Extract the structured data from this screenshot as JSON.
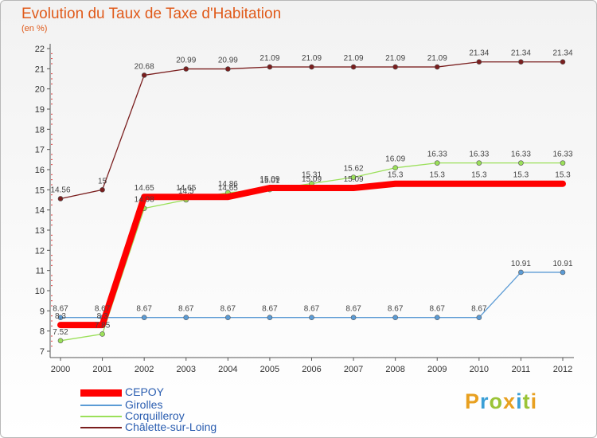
{
  "header": {
    "title": "Evolution du Taux de Taxe d'Habitation",
    "unit": "(en %)"
  },
  "logo": {
    "text": "Proxiti"
  },
  "colors": {
    "cepoy": "#ff0000",
    "girolles": "#5b9bd5",
    "corquilleroy": "#9be05a",
    "chalette": "#7a1e1e",
    "title": "#e05a1a",
    "legend_text": "#2a5db0"
  },
  "chart_data": {
    "type": "line",
    "title": "Evolution du Taux de Taxe d'Habitation",
    "subtitle": "(en %)",
    "xlabel": "",
    "ylabel": "",
    "x": [
      2000,
      2001,
      2002,
      2003,
      2004,
      2005,
      2006,
      2007,
      2008,
      2009,
      2010,
      2011,
      2012
    ],
    "ylim": [
      7,
      22
    ],
    "yticks": [
      7,
      8,
      9,
      10,
      11,
      12,
      13,
      14,
      15,
      16,
      17,
      18,
      19,
      20,
      21,
      22
    ],
    "grid": false,
    "legend_position": "bottom-left",
    "series": [
      {
        "name": "CEPOY",
        "color": "#ff0000",
        "values": [
          8.3,
          8.3,
          14.65,
          14.65,
          14.65,
          15.09,
          15.09,
          15.09,
          15.3,
          15.3,
          15.3,
          15.3,
          15.3
        ],
        "labels": [
          "8.3",
          "8.3",
          "14.65",
          "14.65",
          "14.65",
          "15.09",
          "15.09",
          "15.09",
          "15.3",
          "15.3",
          "15.3",
          "15.3",
          "15.3"
        ]
      },
      {
        "name": "Girolles",
        "color": "#5b9bd5",
        "values": [
          8.67,
          8.67,
          8.67,
          8.67,
          8.67,
          8.67,
          8.67,
          8.67,
          8.67,
          8.67,
          8.67,
          10.91,
          10.91
        ],
        "labels": [
          "8.67",
          "8.67",
          "8.67",
          "8.67",
          "8.67",
          "8.67",
          "8.67",
          "8.67",
          "8.67",
          "8.67",
          "8.67",
          "10.91",
          "10.91"
        ]
      },
      {
        "name": "Corquilleroy",
        "color": "#9be05a",
        "values": [
          7.52,
          7.85,
          14.08,
          14.5,
          14.86,
          15.01,
          15.31,
          15.62,
          16.09,
          16.33,
          16.33,
          16.33,
          16.33
        ],
        "labels": [
          "7.52",
          "7.85",
          "14.08",
          "14.5",
          "14.86",
          "15.01",
          "15.31",
          "15.62",
          "16.09",
          "16.33",
          "16.33",
          "16.33",
          "16.33"
        ]
      },
      {
        "name": "Châlette-sur-Loing",
        "color": "#7a1e1e",
        "values": [
          14.56,
          15,
          20.68,
          20.99,
          20.99,
          21.09,
          21.09,
          21.09,
          21.09,
          21.09,
          21.34,
          21.34,
          21.34
        ],
        "labels": [
          "14.56",
          "15",
          "20.68",
          "20.99",
          "20.99",
          "21.09",
          "21.09",
          "21.09",
          "21.09",
          "21.09",
          "21.34",
          "21.34",
          "21.34"
        ]
      }
    ]
  }
}
